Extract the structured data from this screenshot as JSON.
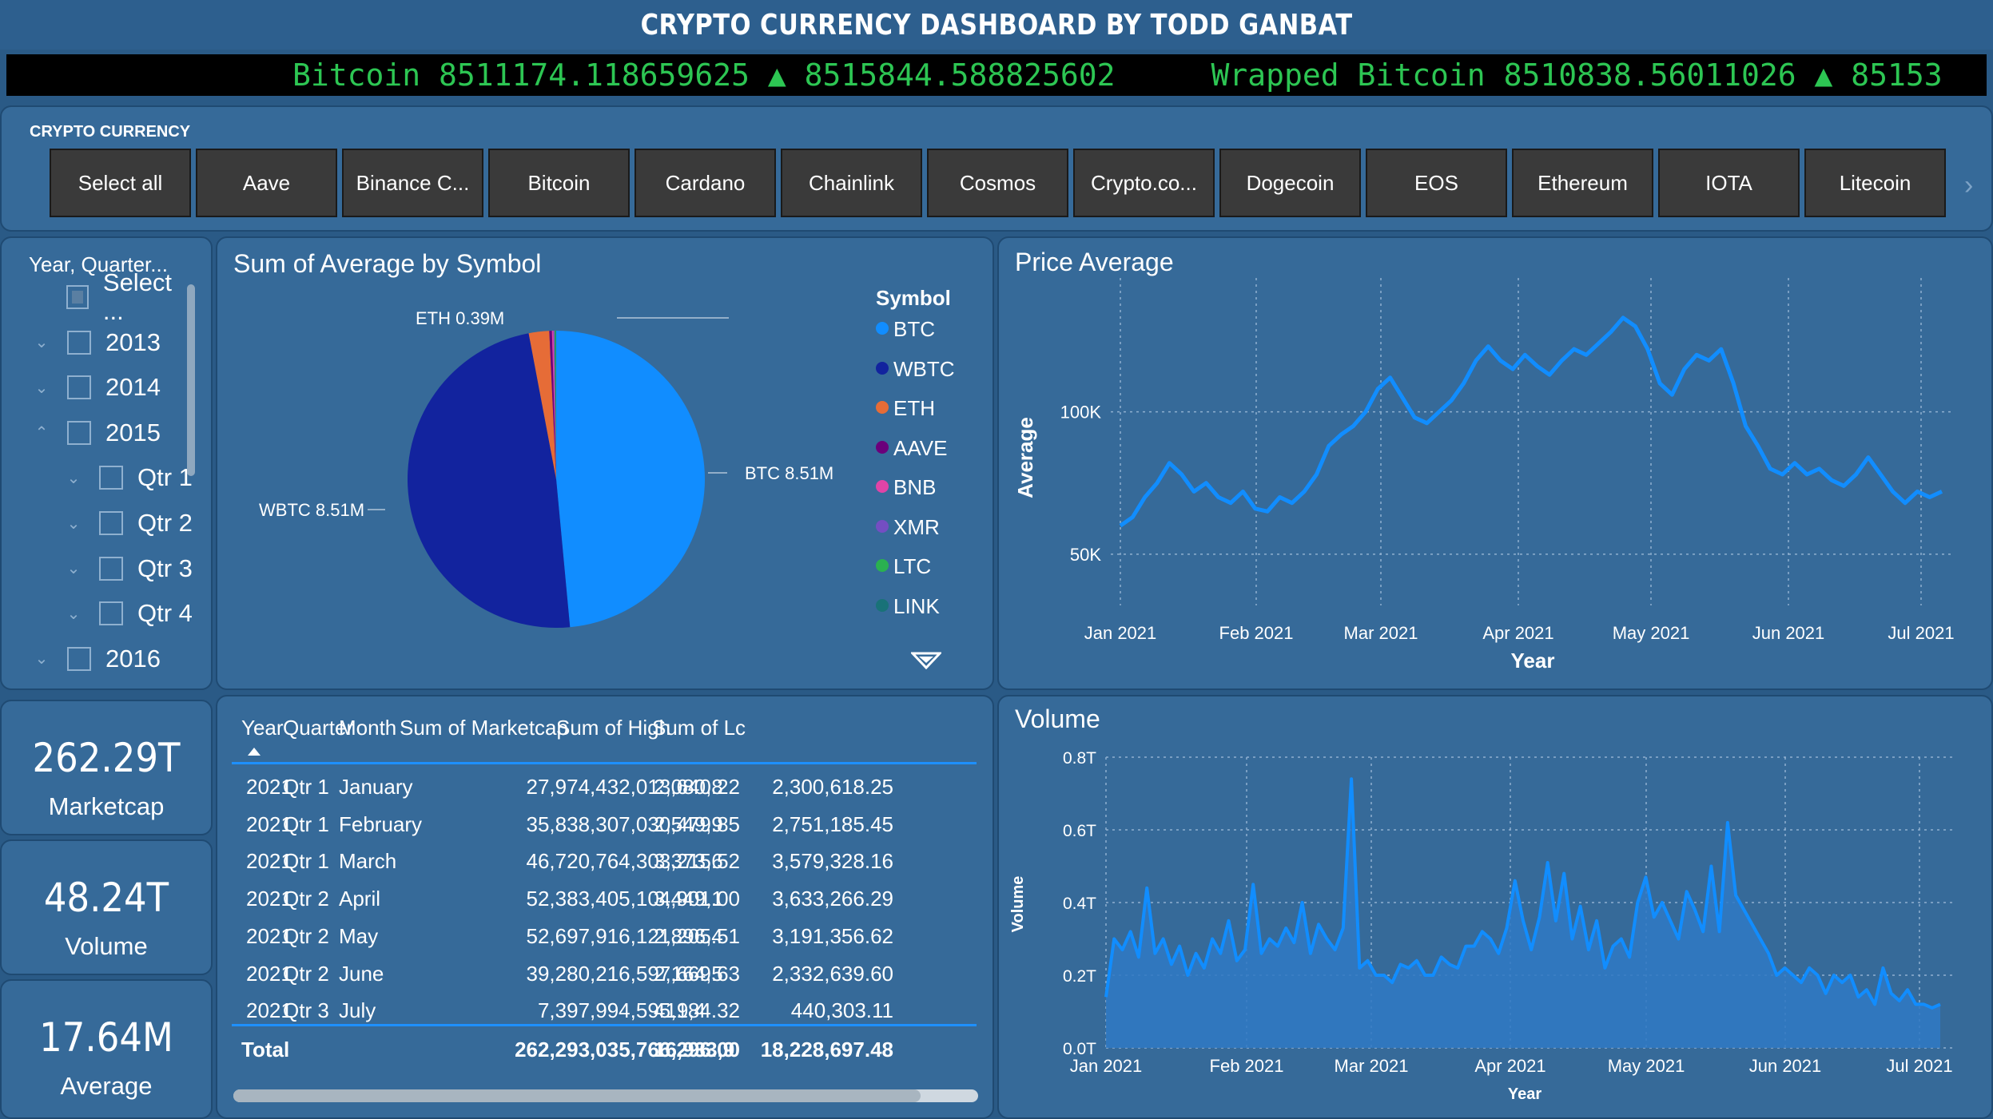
{
  "title": "CRYPTO CURRENCY DASHBOARD BY TODD GANBAT",
  "ticker": [
    {
      "text": "Bitcoin 8511174.118659625 ▲ 8515844.588825602"
    },
    {
      "text": "Wrapped Bitcoin 8510838.56011026 ▲ 85153"
    }
  ],
  "slicer": {
    "label": "CRYPTO CURRENCY",
    "buttons": [
      "Select all",
      "Aave",
      "Binance C...",
      "Bitcoin",
      "Cardano",
      "Chainlink",
      "Cosmos",
      "Crypto.co...",
      "Dogecoin",
      "EOS",
      "Ethereum",
      "IOTA",
      "Litecoin"
    ],
    "next_icon": "chevron-right-icon"
  },
  "year_slicer": {
    "title": "Year, Quarter...",
    "items": [
      {
        "label": "Select ...",
        "level": 0,
        "chevron": ""
      },
      {
        "label": "2013",
        "level": 0,
        "chevron": "⌄"
      },
      {
        "label": "2014",
        "level": 0,
        "chevron": "⌄"
      },
      {
        "label": "2015",
        "level": 0,
        "chevron": "⌃"
      },
      {
        "label": "Qtr 1",
        "level": 1,
        "chevron": "⌄"
      },
      {
        "label": "Qtr 2",
        "level": 1,
        "chevron": "⌄"
      },
      {
        "label": "Qtr 3",
        "level": 1,
        "chevron": "⌄"
      },
      {
        "label": "Qtr 4",
        "level": 1,
        "chevron": "⌄"
      },
      {
        "label": "2016",
        "level": 0,
        "chevron": "⌄"
      }
    ]
  },
  "kpis": [
    {
      "value": "262.29T",
      "label": "Marketcap"
    },
    {
      "value": "48.24T",
      "label": "Volume"
    },
    {
      "value": "17.64M",
      "label": "Average"
    }
  ],
  "pie": {
    "title": "Sum of Average by Symbol",
    "legend_title": "Symbol",
    "labels": {
      "eth": "ETH 0.39M",
      "btc": "BTC 8.51M",
      "wbtc": "WBTC 8.51M"
    },
    "legend": [
      {
        "name": "BTC",
        "color": "#118dff"
      },
      {
        "name": "WBTC",
        "color": "#12239e"
      },
      {
        "name": "ETH",
        "color": "#e66c37"
      },
      {
        "name": "AAVE",
        "color": "#6b007b"
      },
      {
        "name": "BNB",
        "color": "#e044a7"
      },
      {
        "name": "XMR",
        "color": "#744ec2"
      },
      {
        "name": "LTC",
        "color": "#2ab150"
      },
      {
        "name": "LINK",
        "color": "#197278"
      }
    ]
  },
  "table": {
    "headers": [
      "Year",
      "Quarter",
      "Month",
      "Sum of Marketcap",
      "Sum of High",
      "Sum of Lc"
    ],
    "rows": [
      [
        "2021",
        "Qtr 1",
        "January",
        "27,974,432,013,640.22",
        "2,300,618.25",
        "2,080,8"
      ],
      [
        "2021",
        "Qtr 1",
        "February",
        "35,838,307,030,479.85",
        "2,751,185.45",
        "2,549,9"
      ],
      [
        "2021",
        "Qtr 1",
        "March",
        "46,720,764,303,215.52",
        "3,579,328.16",
        "3,373,6"
      ],
      [
        "2021",
        "Qtr 2",
        "April",
        "52,383,405,104,901.00",
        "3,633,266.29",
        "3,449,1"
      ],
      [
        "2021",
        "Qtr 2",
        "May",
        "52,697,916,121,205.51",
        "3,191,356.62",
        "2,896,4"
      ],
      [
        "2021",
        "Qtr 2",
        "June",
        "39,280,216,597,669.63",
        "2,332,639.60",
        "2,164,5"
      ],
      [
        "2021",
        "Qtr 3",
        "July",
        "7,397,994,595,184.32",
        "440,303.11",
        "419,4"
      ]
    ],
    "total": [
      "Total",
      "262,293,035,766,296.00",
      "18,228,697.48",
      "16,933,9"
    ]
  },
  "chart_data": [
    {
      "type": "pie",
      "title": "Sum of Average by Symbol",
      "legend_title": "Symbol",
      "slices": [
        {
          "name": "BTC",
          "value": 8.51
        },
        {
          "name": "WBTC",
          "value": 8.51
        },
        {
          "name": "ETH",
          "value": 0.39
        },
        {
          "name": "AAVE",
          "value": 0.05
        },
        {
          "name": "BNB",
          "value": 0.03
        },
        {
          "name": "XMR",
          "value": 0.02
        },
        {
          "name": "LTC",
          "value": 0.02
        },
        {
          "name": "LINK",
          "value": 0.01
        }
      ],
      "unit": "M",
      "legend_position": "right"
    },
    {
      "type": "line",
      "title": "Price Average",
      "xlabel": "Year",
      "ylabel": "Average",
      "x_ticks": [
        "Jan 2021",
        "Feb 2021",
        "Mar 2021",
        "Apr 2021",
        "May 2021",
        "Jun 2021",
        "Jul 2021"
      ],
      "y_ticks": [
        "50K",
        "100K"
      ],
      "ylim": [
        32000,
        147000
      ],
      "grid": true,
      "series": [
        {
          "color": "#118dff",
          "values": [
            60000,
            63000,
            70000,
            75000,
            82000,
            78000,
            72000,
            75000,
            70000,
            68000,
            72000,
            66000,
            65000,
            70000,
            68000,
            72000,
            78000,
            88000,
            92000,
            95000,
            100000,
            108000,
            112000,
            105000,
            98000,
            96000,
            100000,
            104000,
            110000,
            118000,
            123000,
            118000,
            115000,
            120000,
            116000,
            113000,
            118000,
            122000,
            120000,
            124000,
            128000,
            133000,
            130000,
            122000,
            110000,
            106000,
            115000,
            120000,
            118000,
            122000,
            110000,
            95000,
            88000,
            80000,
            78000,
            82000,
            78000,
            80000,
            76000,
            74000,
            78000,
            84000,
            78000,
            72000,
            68000,
            72000,
            70000,
            72000
          ]
        }
      ]
    },
    {
      "type": "area",
      "title": "Volume",
      "xlabel": "Year",
      "ylabel": "Volume",
      "x_ticks": [
        "Jan 2021",
        "Feb 2021",
        "Mar 2021",
        "Apr 2021",
        "May 2021",
        "Jun 2021",
        "Jul 2021"
      ],
      "y_ticks": [
        "0.0T",
        "0.2T",
        "0.4T",
        "0.6T",
        "0.8T"
      ],
      "ylim": [
        0,
        0.8
      ],
      "grid": true,
      "series": [
        {
          "color": "#118dff",
          "values": [
            0.14,
            0.3,
            0.27,
            0.32,
            0.25,
            0.44,
            0.26,
            0.3,
            0.23,
            0.28,
            0.2,
            0.26,
            0.22,
            0.3,
            0.26,
            0.35,
            0.24,
            0.27,
            0.45,
            0.26,
            0.3,
            0.28,
            0.33,
            0.29,
            0.4,
            0.26,
            0.34,
            0.3,
            0.27,
            0.33,
            0.74,
            0.22,
            0.24,
            0.2,
            0.2,
            0.18,
            0.23,
            0.22,
            0.24,
            0.2,
            0.2,
            0.25,
            0.23,
            0.22,
            0.28,
            0.28,
            0.32,
            0.3,
            0.26,
            0.33,
            0.46,
            0.35,
            0.27,
            0.36,
            0.51,
            0.35,
            0.48,
            0.3,
            0.39,
            0.27,
            0.35,
            0.22,
            0.28,
            0.3,
            0.25,
            0.4,
            0.47,
            0.36,
            0.4,
            0.35,
            0.3,
            0.43,
            0.38,
            0.32,
            0.5,
            0.32,
            0.62,
            0.42,
            0.38,
            0.34,
            0.3,
            0.26,
            0.2,
            0.22,
            0.2,
            0.18,
            0.22,
            0.2,
            0.15,
            0.2,
            0.18,
            0.2,
            0.14,
            0.16,
            0.12,
            0.22,
            0.15,
            0.13,
            0.16,
            0.12,
            0.12,
            0.11,
            0.12
          ]
        }
      ]
    }
  ]
}
